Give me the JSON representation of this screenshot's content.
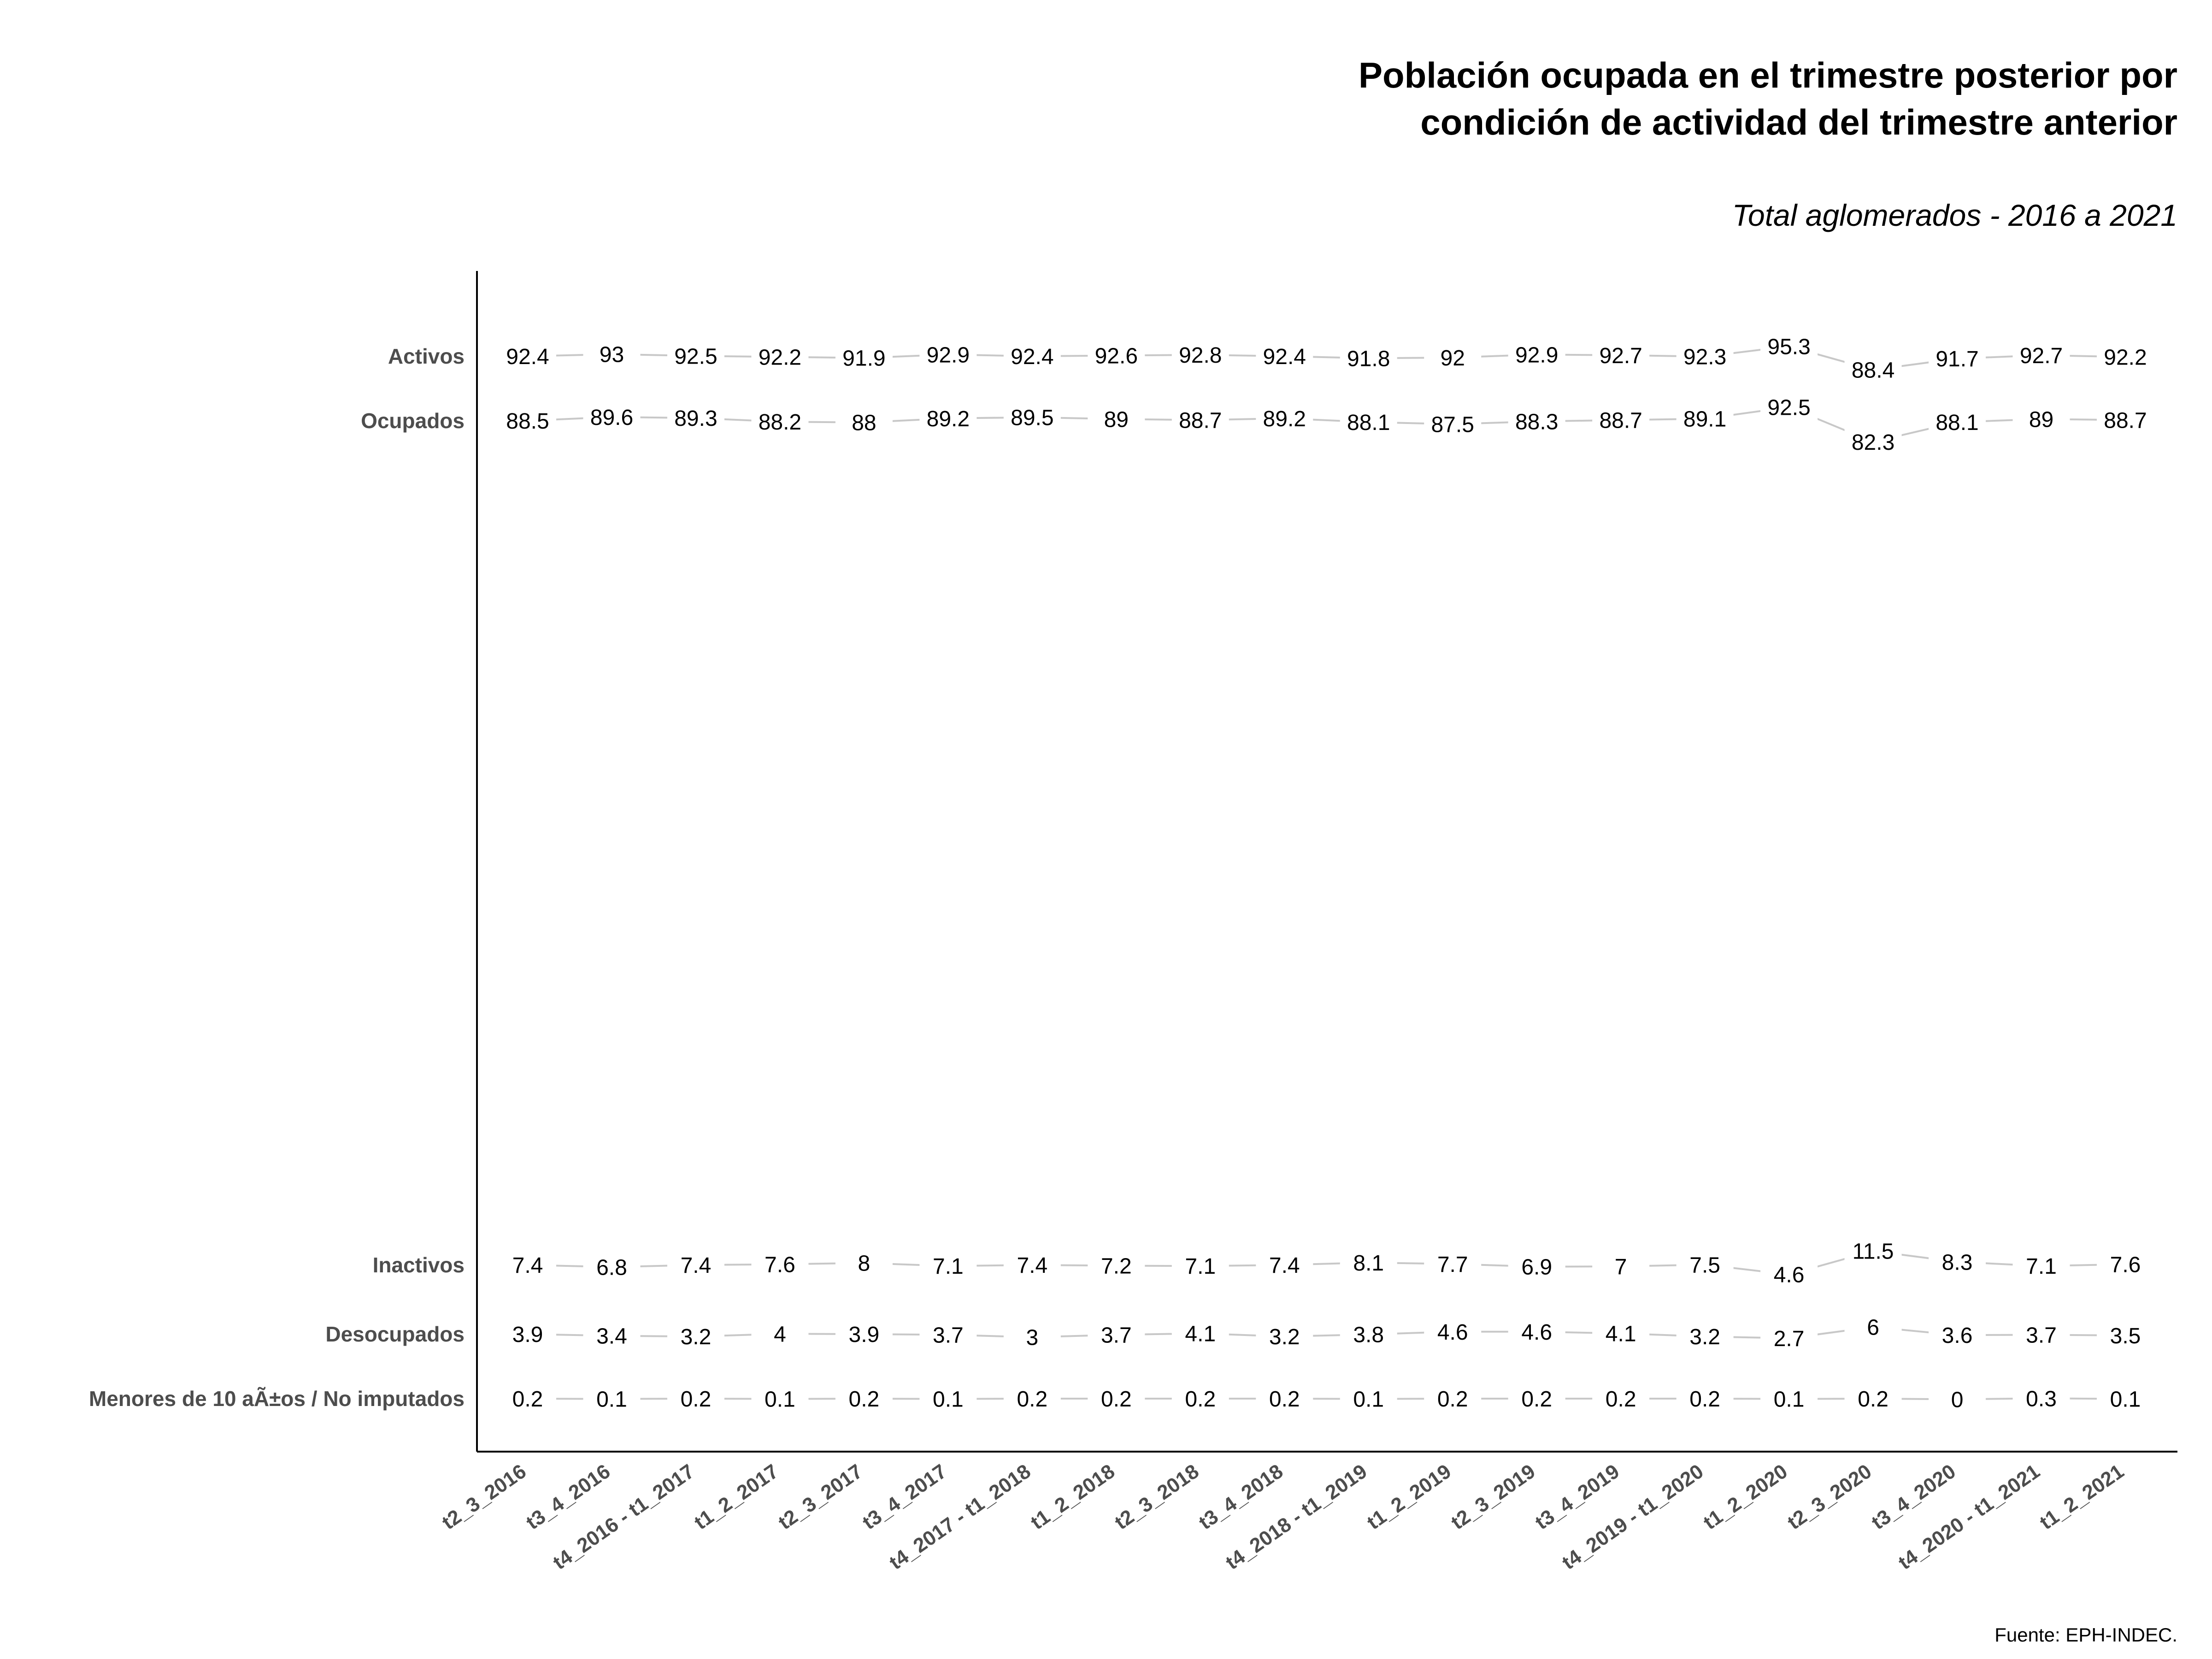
{
  "chart_data": {
    "type": "line",
    "title_line1": "Población ocupada en el trimestre posterior por",
    "title_line2": "condición de actividad del trimestre anterior",
    "subtitle": "Total aglomerados - 2016 a 2021",
    "caption": "Fuente: EPH-INDEC.",
    "categories": [
      "t2_3_2016",
      "t3_4_2016",
      "t4_2016 - t1_2017",
      "t1_2_2017",
      "t2_3_2017",
      "t3_4_2017",
      "t4_2017 - t1_2018",
      "t1_2_2018",
      "t2_3_2018",
      "t3_4_2018",
      "t4_2018 - t1_2019",
      "t1_2_2019",
      "t2_3_2019",
      "t3_4_2019",
      "t4_2019 - t1_2020",
      "t1_2_2020",
      "t2_3_2020",
      "t3_4_2020",
      "t4_2020 - t1_2021",
      "t1_2_2021"
    ],
    "ylabels": [
      "Activos",
      "Ocupados",
      "Inactivos",
      "Desocupados",
      "Menores de 10 aÃ±os / No imputados"
    ],
    "grid": false,
    "legend": "none",
    "line_color": "#c8c8c8",
    "series": [
      {
        "name": "Activos",
        "values": [
          92.4,
          93,
          92.5,
          92.2,
          91.9,
          92.9,
          92.4,
          92.6,
          92.8,
          92.4,
          91.8,
          92,
          92.9,
          92.7,
          92.3,
          95.3,
          88.4,
          91.7,
          92.7,
          92.2
        ]
      },
      {
        "name": "Ocupados",
        "values": [
          88.5,
          89.6,
          89.3,
          88.2,
          88,
          89.2,
          89.5,
          89,
          88.7,
          89.2,
          88.1,
          87.5,
          88.3,
          88.7,
          89.1,
          92.5,
          82.3,
          88.1,
          89,
          88.7
        ]
      },
      {
        "name": "Inactivos",
        "values": [
          7.4,
          6.8,
          7.4,
          7.6,
          8,
          7.1,
          7.4,
          7.2,
          7.1,
          7.4,
          8.1,
          7.7,
          6.9,
          7,
          7.5,
          4.6,
          11.5,
          8.3,
          7.1,
          7.6
        ]
      },
      {
        "name": "Desocupados",
        "values": [
          3.9,
          3.4,
          3.2,
          4,
          3.9,
          3.7,
          3,
          3.7,
          4.1,
          3.2,
          3.8,
          4.6,
          4.6,
          4.1,
          3.2,
          2.7,
          6,
          3.6,
          3.7,
          3.5
        ]
      },
      {
        "name": "Menores de 10 aÃ±os / No imputados",
        "values": [
          0.2,
          0.1,
          0.2,
          0.1,
          0.2,
          0.1,
          0.2,
          0.2,
          0.2,
          0.2,
          0.1,
          0.2,
          0.2,
          0.2,
          0.2,
          0.1,
          0.2,
          0,
          0.3,
          0.1
        ]
      }
    ]
  }
}
